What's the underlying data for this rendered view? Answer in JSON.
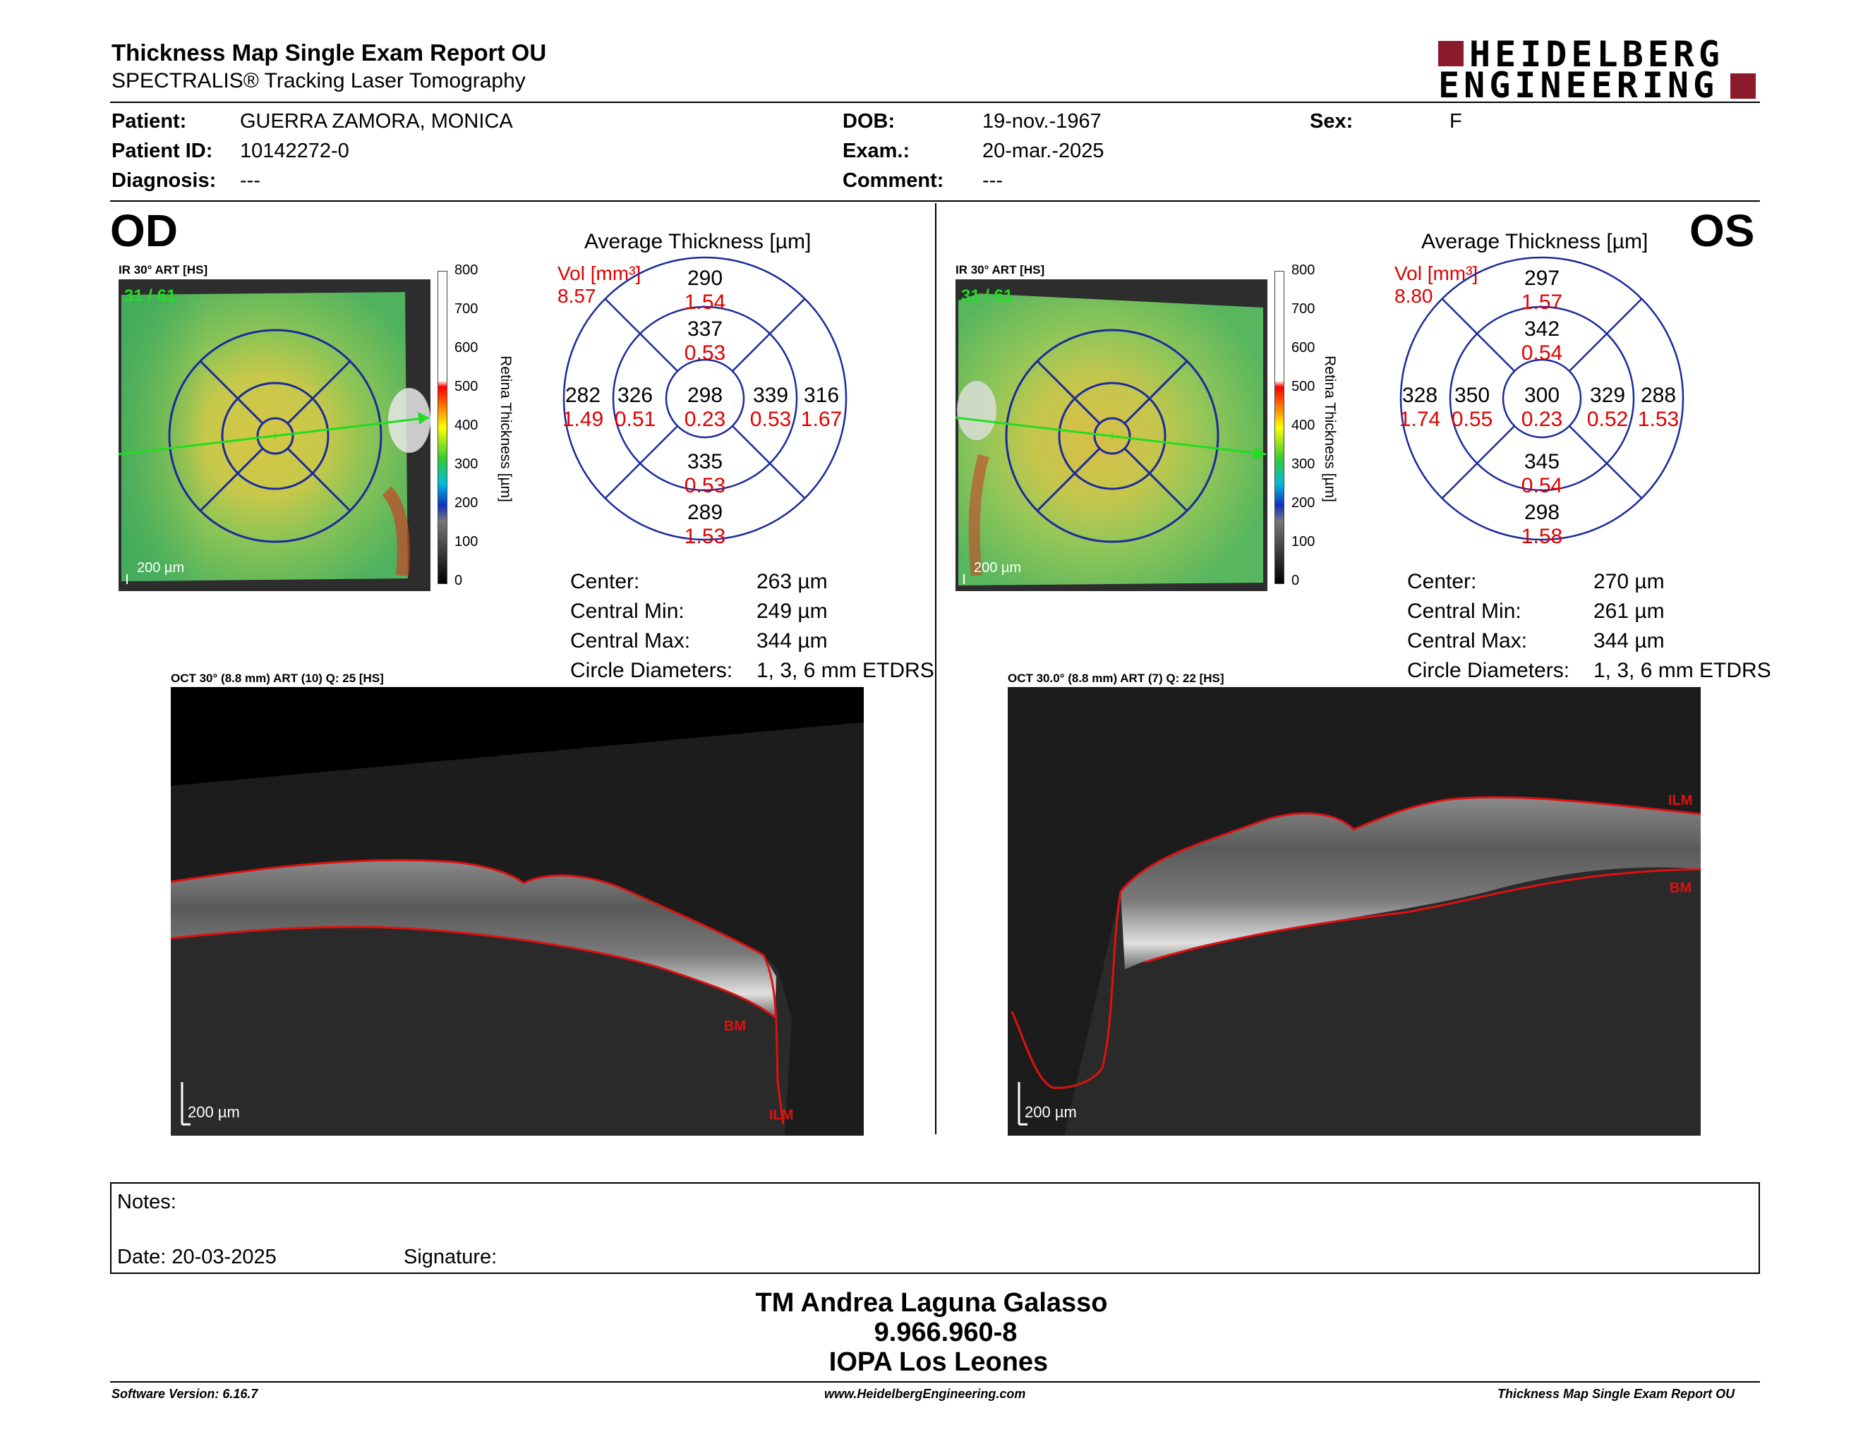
{
  "header": {
    "title": "Thickness Map Single Exam Report OU",
    "subtitle": "SPECTRALIS® Tracking Laser Tomography",
    "logo_line1": "HEIDELBERG",
    "logo_line2": "ENGINEERING",
    "logo_color": "#8b1a2b"
  },
  "patient": {
    "patient_label": "Patient:",
    "patient_value": "GUERRA ZAMORA, MONICA",
    "id_label": "Patient ID:",
    "id_value": "10142272-0",
    "diag_label": "Diagnosis:",
    "diag_value": "---",
    "dob_label": "DOB:",
    "dob_value": "19-nov.-1967",
    "exam_label": "Exam.:",
    "exam_value": "20-mar.-2025",
    "comment_label": "Comment:",
    "comment_value": "---",
    "sex_label": "Sex:",
    "sex_value": "F"
  },
  "od": {
    "eye": "OD",
    "ir_caption": "IR 30° ART [HS]",
    "frame": "31 / 61",
    "ir_scale": "200 µm",
    "colorbar_ticks": [
      "800",
      "700",
      "600",
      "500",
      "400",
      "300",
      "200",
      "100",
      "0"
    ],
    "colorbar_label": "Retina Thickness [µm]",
    "chart_title": "Average Thickness [µm]",
    "vol_label": "Vol [mm³]",
    "vol_value": "8.57",
    "sectors": {
      "sup_outer": "290",
      "sup_outer_vol": "1.54",
      "sup_inner": "337",
      "sup_inner_vol": "0.53",
      "temp_outer": "282",
      "temp_outer_vol": "1.49",
      "temp_inner": "326",
      "temp_inner_vol": "0.51",
      "center": "298",
      "center_vol": "0.23",
      "nas_inner": "339",
      "nas_inner_vol": "0.53",
      "nas_outer": "316",
      "nas_outer_vol": "1.67",
      "inf_inner": "335",
      "inf_inner_vol": "0.53",
      "inf_outer": "289",
      "inf_outer_vol": "1.53"
    },
    "stats": {
      "center_label": "Center:",
      "center_value": "263 µm",
      "min_label": "Central Min:",
      "min_value": "249 µm",
      "max_label": "Central Max:",
      "max_value": "344 µm",
      "diam_label": "Circle Diameters:",
      "diam_value": "1, 3, 6 mm ETDRS"
    },
    "oct_caption": "OCT 30° (8.8 mm) ART (10) Q: 25 [HS]",
    "oct_scale": "200 µm",
    "ilm": "ILM",
    "bm": "BM"
  },
  "os": {
    "eye": "OS",
    "ir_caption": "IR 30° ART [HS]",
    "frame": "31 / 61",
    "ir_scale": "200 µm",
    "colorbar_ticks": [
      "800",
      "700",
      "600",
      "500",
      "400",
      "300",
      "200",
      "100",
      "0"
    ],
    "colorbar_label": "Retina Thickness [µm]",
    "chart_title": "Average Thickness [µm]",
    "vol_label": "Vol [mm³]",
    "vol_value": "8.80",
    "sectors": {
      "sup_outer": "297",
      "sup_outer_vol": "1.57",
      "sup_inner": "342",
      "sup_inner_vol": "0.54",
      "temp_outer": "328",
      "temp_outer_vol": "1.74",
      "temp_inner": "350",
      "temp_inner_vol": "0.55",
      "center": "300",
      "center_vol": "0.23",
      "nas_inner": "329",
      "nas_inner_vol": "0.52",
      "nas_outer": "288",
      "nas_outer_vol": "1.53",
      "inf_inner": "345",
      "inf_inner_vol": "0.54",
      "inf_outer": "298",
      "inf_outer_vol": "1.58"
    },
    "stats": {
      "center_label": "Center:",
      "center_value": "270 µm",
      "min_label": "Central Min:",
      "min_value": "261 µm",
      "max_label": "Central Max:",
      "max_value": "344 µm",
      "diam_label": "Circle Diameters:",
      "diam_value": "1, 3, 6 mm ETDRS"
    },
    "oct_caption": "OCT 30.0° (8.8 mm) ART (7) Q: 22 [HS]",
    "oct_scale": "200 µm",
    "ilm": "ILM",
    "bm": "BM"
  },
  "notes": {
    "notes_label": "Notes:",
    "date_label": "Date: 20-03-2025",
    "signature_label": "Signature:"
  },
  "signature_block": {
    "name": "TM Andrea Laguna Galasso",
    "rut": "9.966.960-8",
    "place": "IOPA Los Leones"
  },
  "footer": {
    "software": "Software Version: 6.16.7",
    "website": "www.HeidelbergEngineering.com",
    "report": "Thickness Map Single Exam Report OU"
  },
  "colors": {
    "vol_red": "#e00000",
    "etdrs_blue": "#1a2a9c",
    "scan_green": "#22dd22",
    "seg_red": "#e01010"
  }
}
